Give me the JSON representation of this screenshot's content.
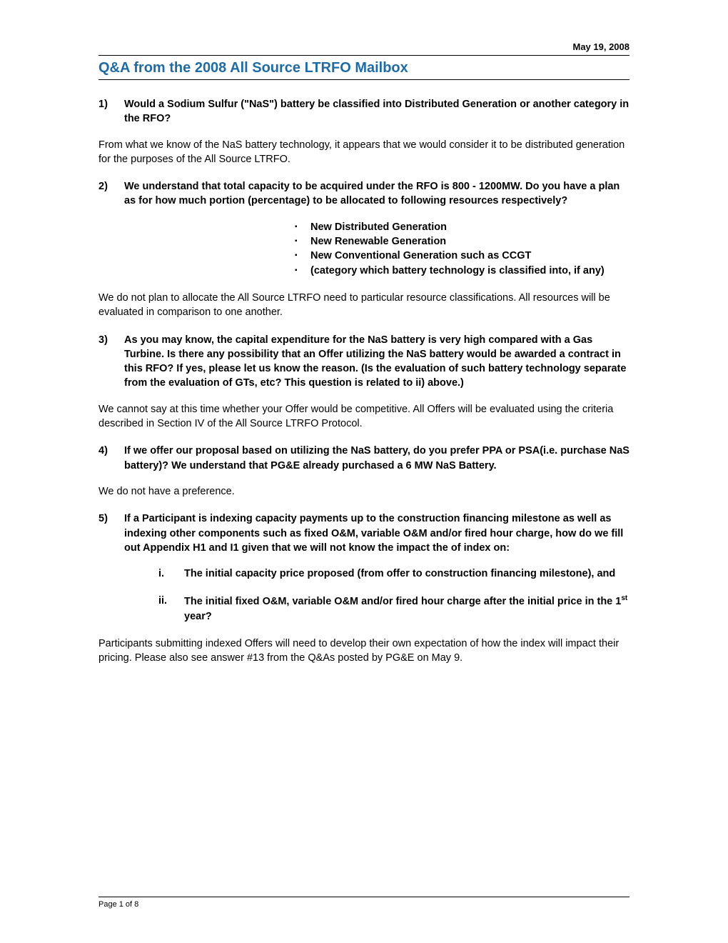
{
  "date": "May 19, 2008",
  "title": "Q&A from the 2008 All Source LTRFO Mailbox",
  "q1": {
    "num": "1)",
    "text": "Would a Sodium Sulfur (\"NaS\") battery be classified into Distributed Generation or another category in the RFO?",
    "answer": "From what we know of the NaS battery technology, it appears that we would consider it to be distributed generation for the purposes of the All Source LTRFO."
  },
  "q2": {
    "num": "2)",
    "text": "We understand that total capacity to be acquired under the RFO is 800 - 1200MW. Do you have a plan as for how much portion (percentage) to be allocated to following resources respectively?",
    "bullets": [
      "New Distributed Generation",
      "New Renewable Generation",
      "New Conventional Generation such as CCGT",
      "(category which battery technology is classified into, if any)"
    ],
    "answer": "We do not plan to allocate the All Source LTRFO need to particular resource classifications.  All resources will be evaluated in comparison to one another."
  },
  "q3": {
    "num": "3)",
    "text": "As you may know, the capital expenditure for the NaS battery is very high compared with a Gas Turbine.   Is there any possibility that an Offer utilizing the NaS battery would be awarded a contract in this RFO?  If yes, please let us know the reason. (Is the evaluation of such battery technology separate from the evaluation of GTs, etc? This question is related to ii) above.)",
    "answer": "We cannot say at this time whether your Offer would be competitive.  All Offers will be evaluated using the criteria described in Section IV of the All Source LTRFO Protocol."
  },
  "q4": {
    "num": "4)",
    "text": "If we offer our proposal based on utilizing the NaS battery, do you prefer PPA or PSA(i.e. purchase NaS battery)?   We understand that PG&E already purchased a 6 MW NaS Battery.",
    "answer": "We do not have a preference."
  },
  "q5": {
    "num": "5)",
    "text": "If a Participant is indexing capacity payments up to the construction financing milestone as well as indexing other components such as fixed O&M, variable O&M and/or fired hour charge, how do we fill out Appendix H1 and I1 given that we will not know the impact the of index on:",
    "sub_i_num": "i.",
    "sub_i_text": "The initial capacity price proposed (from offer to construction financing milestone), and",
    "sub_ii_num": "ii.",
    "sub_ii_text_a": "The initial fixed O&M, variable O&M and/or fired hour charge after the initial price in the 1",
    "sub_ii_text_b": " year?",
    "answer": "Participants submitting indexed Offers will need to develop their own expectation of how the index will impact their pricing.  Please also see answer #13 from the Q&As posted by PG&E on May 9."
  },
  "footer": "Page 1 of 8"
}
